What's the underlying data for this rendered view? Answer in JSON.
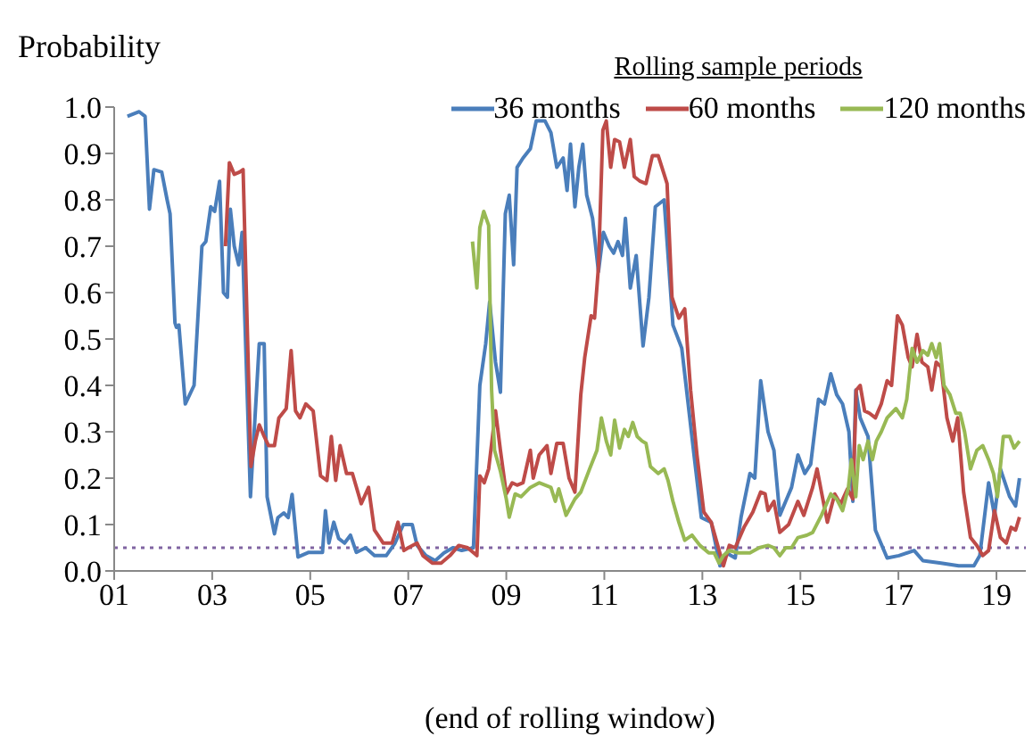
{
  "chart_data": {
    "type": "line",
    "ylabel": "Probability",
    "xlabel": "(end of rolling window)",
    "legend_title": "Rolling sample periods",
    "legend": "top right",
    "xlim": [
      2001,
      2019.6
    ],
    "xticks": [
      {
        "value": 2001,
        "label": "01"
      },
      {
        "value": 2003,
        "label": "03"
      },
      {
        "value": 2005,
        "label": "05"
      },
      {
        "value": 2007,
        "label": "07"
      },
      {
        "value": 2009,
        "label": "09"
      },
      {
        "value": 2011,
        "label": "11"
      },
      {
        "value": 2013,
        "label": "13"
      },
      {
        "value": 2015,
        "label": "15"
      },
      {
        "value": 2017,
        "label": "17"
      },
      {
        "value": 2019,
        "label": "19"
      }
    ],
    "ylim": [
      0,
      1
    ],
    "yticks": [
      {
        "value": 0,
        "label": "0.0"
      },
      {
        "value": 0.1,
        "label": "0.1"
      },
      {
        "value": 0.2,
        "label": "0.2"
      },
      {
        "value": 0.3,
        "label": "0.3"
      },
      {
        "value": 0.4,
        "label": "0.4"
      },
      {
        "value": 0.5,
        "label": "0.5"
      },
      {
        "value": 0.6,
        "label": "0.6"
      },
      {
        "value": 0.7,
        "label": "0.7"
      },
      {
        "value": 0.8,
        "label": "0.8"
      },
      {
        "value": 0.9,
        "label": "0.9"
      },
      {
        "value": 1,
        "label": "1.0"
      }
    ],
    "ref_lines": [
      {
        "axis": "y",
        "value": 0.05,
        "label": null,
        "color": "#8064a2",
        "line_style": "dotted"
      }
    ],
    "series": [
      {
        "name": "36 months",
        "color": "#4a7ebb",
        "x": [
          2001.27,
          2001.51,
          2001.63,
          2001.72,
          2001.81,
          2001.97,
          2002.08,
          2002.14,
          2002.24,
          2002.27,
          2002.32,
          2002.45,
          2002.63,
          2002.79,
          2002.87,
          2002.97,
          2003.05,
          2003.15,
          2003.23,
          2003.31,
          2003.37,
          2003.45,
          2003.54,
          2003.61,
          2003.78,
          2003.96,
          2004.06,
          2004.12,
          2004.27,
          2004.34,
          2004.46,
          2004.55,
          2004.63,
          2004.75,
          2004.97,
          2005.15,
          2005.25,
          2005.31,
          2005.38,
          2005.48,
          2005.58,
          2005.7,
          2005.82,
          2005.94,
          2006.13,
          2006.31,
          2006.55,
          2006.73,
          2006.9,
          2007.08,
          2007.18,
          2007.36,
          2007.55,
          2007.73,
          2007.91,
          2008.09,
          2008.33,
          2008.46,
          2008.58,
          2008.66,
          2008.78,
          2008.88,
          2008.98,
          2009.06,
          2009.15,
          2009.22,
          2009.34,
          2009.49,
          2009.61,
          2009.79,
          2009.91,
          2010.03,
          2010.16,
          2010.24,
          2010.31,
          2010.4,
          2010.48,
          2010.56,
          2010.64,
          2010.76,
          2010.88,
          2010.98,
          2011.1,
          2011.19,
          2011.28,
          2011.37,
          2011.43,
          2011.53,
          2011.65,
          2011.79,
          2011.91,
          2012.04,
          2012.22,
          2012.4,
          2012.58,
          2012.83,
          2012.98,
          2013.18,
          2013.36,
          2013.49,
          2013.67,
          2013.79,
          2013.97,
          2014.07,
          2014.19,
          2014.34,
          2014.46,
          2014.58,
          2014.7,
          2014.82,
          2014.95,
          2015.09,
          2015.21,
          2015.37,
          2015.49,
          2015.62,
          2015.74,
          2015.86,
          2015.99,
          2016.07,
          2016.13,
          2016.22,
          2016.38,
          2016.53,
          2016.77,
          2017.01,
          2017.32,
          2017.5,
          2017.87,
          2018.23,
          2018.54,
          2018.66,
          2018.84,
          2018.96,
          2019.08,
          2019.27,
          2019.39,
          2019.47
        ],
        "values": [
          0.98,
          0.99,
          0.98,
          0.78,
          0.865,
          0.86,
          0.8,
          0.77,
          0.535,
          0.525,
          0.53,
          0.36,
          0.4,
          0.7,
          0.71,
          0.785,
          0.775,
          0.84,
          0.6,
          0.59,
          0.78,
          0.7,
          0.66,
          0.73,
          0.16,
          0.49,
          0.49,
          0.16,
          0.08,
          0.115,
          0.125,
          0.115,
          0.165,
          0.03,
          0.04,
          0.04,
          0.04,
          0.13,
          0.06,
          0.105,
          0.07,
          0.06,
          0.077,
          0.04,
          0.05,
          0.033,
          0.033,
          0.06,
          0.1,
          0.1,
          0.055,
          0.033,
          0.022,
          0.039,
          0.05,
          0.044,
          0.05,
          0.4,
          0.49,
          0.58,
          0.45,
          0.385,
          0.77,
          0.81,
          0.66,
          0.87,
          0.89,
          0.91,
          0.97,
          0.97,
          0.945,
          0.87,
          0.89,
          0.82,
          0.92,
          0.785,
          0.87,
          0.92,
          0.81,
          0.76,
          0.645,
          0.73,
          0.7,
          0.685,
          0.71,
          0.68,
          0.76,
          0.61,
          0.68,
          0.485,
          0.59,
          0.785,
          0.8,
          0.53,
          0.48,
          0.25,
          0.115,
          0.105,
          0.011,
          0.039,
          0.028,
          0.116,
          0.21,
          0.2,
          0.41,
          0.3,
          0.26,
          0.12,
          0.15,
          0.18,
          0.25,
          0.21,
          0.23,
          0.37,
          0.36,
          0.425,
          0.38,
          0.36,
          0.3,
          0.15,
          0.39,
          0.33,
          0.29,
          0.088,
          0.028,
          0.033,
          0.044,
          0.022,
          0.017,
          0.011,
          0.011,
          0.033,
          0.19,
          0.12,
          0.22,
          0.16,
          0.14,
          0.2
        ]
      },
      {
        "name": "60 months",
        "color": "#be4b48",
        "x": [
          2003.27,
          2003.35,
          2003.45,
          2003.56,
          2003.63,
          2003.79,
          2003.88,
          2003.96,
          2004.06,
          2004.15,
          2004.27,
          2004.36,
          2004.51,
          2004.61,
          2004.7,
          2004.79,
          2004.91,
          2005.06,
          2005.21,
          2005.34,
          2005.43,
          2005.52,
          2005.61,
          2005.74,
          2005.86,
          2006.04,
          2006.19,
          2006.31,
          2006.49,
          2006.67,
          2006.79,
          2006.91,
          2007.0,
          2007.18,
          2007.3,
          2007.49,
          2007.67,
          2007.85,
          2008.03,
          2008.21,
          2008.4,
          2008.46,
          2008.55,
          2008.64,
          2008.78,
          2008.88,
          2009.0,
          2009.12,
          2009.22,
          2009.34,
          2009.49,
          2009.55,
          2009.67,
          2009.83,
          2009.91,
          2010.03,
          2010.16,
          2010.28,
          2010.4,
          2010.52,
          2010.6,
          2010.73,
          2010.8,
          2010.88,
          2010.97,
          2011.04,
          2011.13,
          2011.21,
          2011.31,
          2011.41,
          2011.53,
          2011.61,
          2011.73,
          2011.85,
          2011.98,
          2012.1,
          2012.22,
          2012.28,
          2012.38,
          2012.52,
          2012.64,
          2012.76,
          2012.89,
          2013.03,
          2013.18,
          2013.43,
          2013.55,
          2013.67,
          2013.85,
          2014.03,
          2014.19,
          2014.28,
          2014.34,
          2014.46,
          2014.58,
          2014.76,
          2014.95,
          2015.07,
          2015.25,
          2015.34,
          2015.43,
          2015.55,
          2015.7,
          2015.82,
          2015.96,
          2016.07,
          2016.14,
          2016.22,
          2016.31,
          2016.41,
          2016.53,
          2016.65,
          2016.77,
          2016.86,
          2016.98,
          2017.08,
          2017.2,
          2017.28,
          2017.38,
          2017.48,
          2017.6,
          2017.68,
          2017.77,
          2017.87,
          2017.99,
          2018.11,
          2018.21,
          2018.33,
          2018.47,
          2018.6,
          2018.72,
          2018.84,
          2018.96,
          2019.08,
          2019.2,
          2019.3,
          2019.39,
          2019.47
        ],
        "values": [
          0.7,
          0.88,
          0.855,
          0.86,
          0.865,
          0.225,
          0.28,
          0.315,
          0.29,
          0.27,
          0.27,
          0.33,
          0.35,
          0.475,
          0.345,
          0.33,
          0.36,
          0.345,
          0.205,
          0.195,
          0.29,
          0.195,
          0.27,
          0.21,
          0.21,
          0.145,
          0.18,
          0.088,
          0.06,
          0.06,
          0.105,
          0.044,
          0.05,
          0.06,
          0.033,
          0.017,
          0.017,
          0.033,
          0.055,
          0.05,
          0.033,
          0.205,
          0.19,
          0.22,
          0.345,
          0.26,
          0.166,
          0.19,
          0.185,
          0.19,
          0.26,
          0.2,
          0.25,
          0.27,
          0.21,
          0.275,
          0.275,
          0.2,
          0.17,
          0.38,
          0.46,
          0.55,
          0.545,
          0.655,
          0.95,
          0.97,
          0.87,
          0.93,
          0.925,
          0.87,
          0.93,
          0.85,
          0.84,
          0.835,
          0.895,
          0.895,
          0.855,
          0.835,
          0.59,
          0.545,
          0.565,
          0.39,
          0.25,
          0.127,
          0.105,
          0.011,
          0.055,
          0.05,
          0.094,
          0.127,
          0.17,
          0.166,
          0.13,
          0.15,
          0.083,
          0.1,
          0.15,
          0.12,
          0.18,
          0.22,
          0.17,
          0.105,
          0.166,
          0.144,
          0.177,
          0.155,
          0.39,
          0.4,
          0.345,
          0.34,
          0.33,
          0.36,
          0.41,
          0.4,
          0.55,
          0.53,
          0.46,
          0.44,
          0.51,
          0.45,
          0.44,
          0.39,
          0.45,
          0.44,
          0.33,
          0.28,
          0.33,
          0.17,
          0.072,
          0.055,
          0.033,
          0.044,
          0.13,
          0.072,
          0.06,
          0.094,
          0.088,
          0.116
        ]
      },
      {
        "name": "120 months",
        "color": "#98b954",
        "x": [
          2008.31,
          2008.4,
          2008.46,
          2008.54,
          2008.64,
          2008.7,
          2008.76,
          2008.88,
          2009.0,
          2009.06,
          2009.18,
          2009.3,
          2009.49,
          2009.67,
          2009.91,
          2010.0,
          2010.07,
          2010.22,
          2010.4,
          2010.52,
          2010.7,
          2010.85,
          2010.94,
          2011.04,
          2011.13,
          2011.21,
          2011.31,
          2011.41,
          2011.49,
          2011.58,
          2011.67,
          2011.77,
          2011.85,
          2011.94,
          2012.1,
          2012.22,
          2012.3,
          2012.4,
          2012.52,
          2012.64,
          2012.79,
          2012.95,
          2013.13,
          2013.24,
          2013.34,
          2013.43,
          2013.55,
          2013.73,
          2013.97,
          2014.16,
          2014.34,
          2014.46,
          2014.58,
          2014.7,
          2014.82,
          2014.95,
          2015.13,
          2015.25,
          2015.43,
          2015.62,
          2015.74,
          2015.86,
          2015.98,
          2016.04,
          2016.13,
          2016.2,
          2016.28,
          2016.38,
          2016.47,
          2016.55,
          2016.65,
          2016.77,
          2016.95,
          2017.08,
          2017.17,
          2017.28,
          2017.38,
          2017.5,
          2017.6,
          2017.68,
          2017.77,
          2017.84,
          2017.93,
          2018.05,
          2018.17,
          2018.26,
          2018.35,
          2018.47,
          2018.6,
          2018.72,
          2018.84,
          2018.94,
          2019.02,
          2019.14,
          2019.27,
          2019.36,
          2019.47
        ],
        "values": [
          0.71,
          0.61,
          0.74,
          0.775,
          0.745,
          0.39,
          0.26,
          0.215,
          0.155,
          0.116,
          0.166,
          0.16,
          0.18,
          0.19,
          0.18,
          0.15,
          0.177,
          0.12,
          0.155,
          0.17,
          0.22,
          0.26,
          0.33,
          0.28,
          0.25,
          0.325,
          0.265,
          0.305,
          0.29,
          0.32,
          0.29,
          0.28,
          0.275,
          0.225,
          0.21,
          0.22,
          0.195,
          0.15,
          0.105,
          0.066,
          0.077,
          0.055,
          0.039,
          0.039,
          0.017,
          0.033,
          0.044,
          0.039,
          0.039,
          0.05,
          0.055,
          0.05,
          0.033,
          0.05,
          0.05,
          0.072,
          0.077,
          0.083,
          0.12,
          0.166,
          0.155,
          0.13,
          0.18,
          0.24,
          0.16,
          0.27,
          0.24,
          0.28,
          0.24,
          0.28,
          0.3,
          0.33,
          0.35,
          0.33,
          0.37,
          0.48,
          0.45,
          0.475,
          0.465,
          0.49,
          0.46,
          0.49,
          0.4,
          0.38,
          0.34,
          0.34,
          0.3,
          0.22,
          0.26,
          0.27,
          0.24,
          0.21,
          0.16,
          0.29,
          0.29,
          0.265,
          0.28
        ]
      }
    ]
  }
}
